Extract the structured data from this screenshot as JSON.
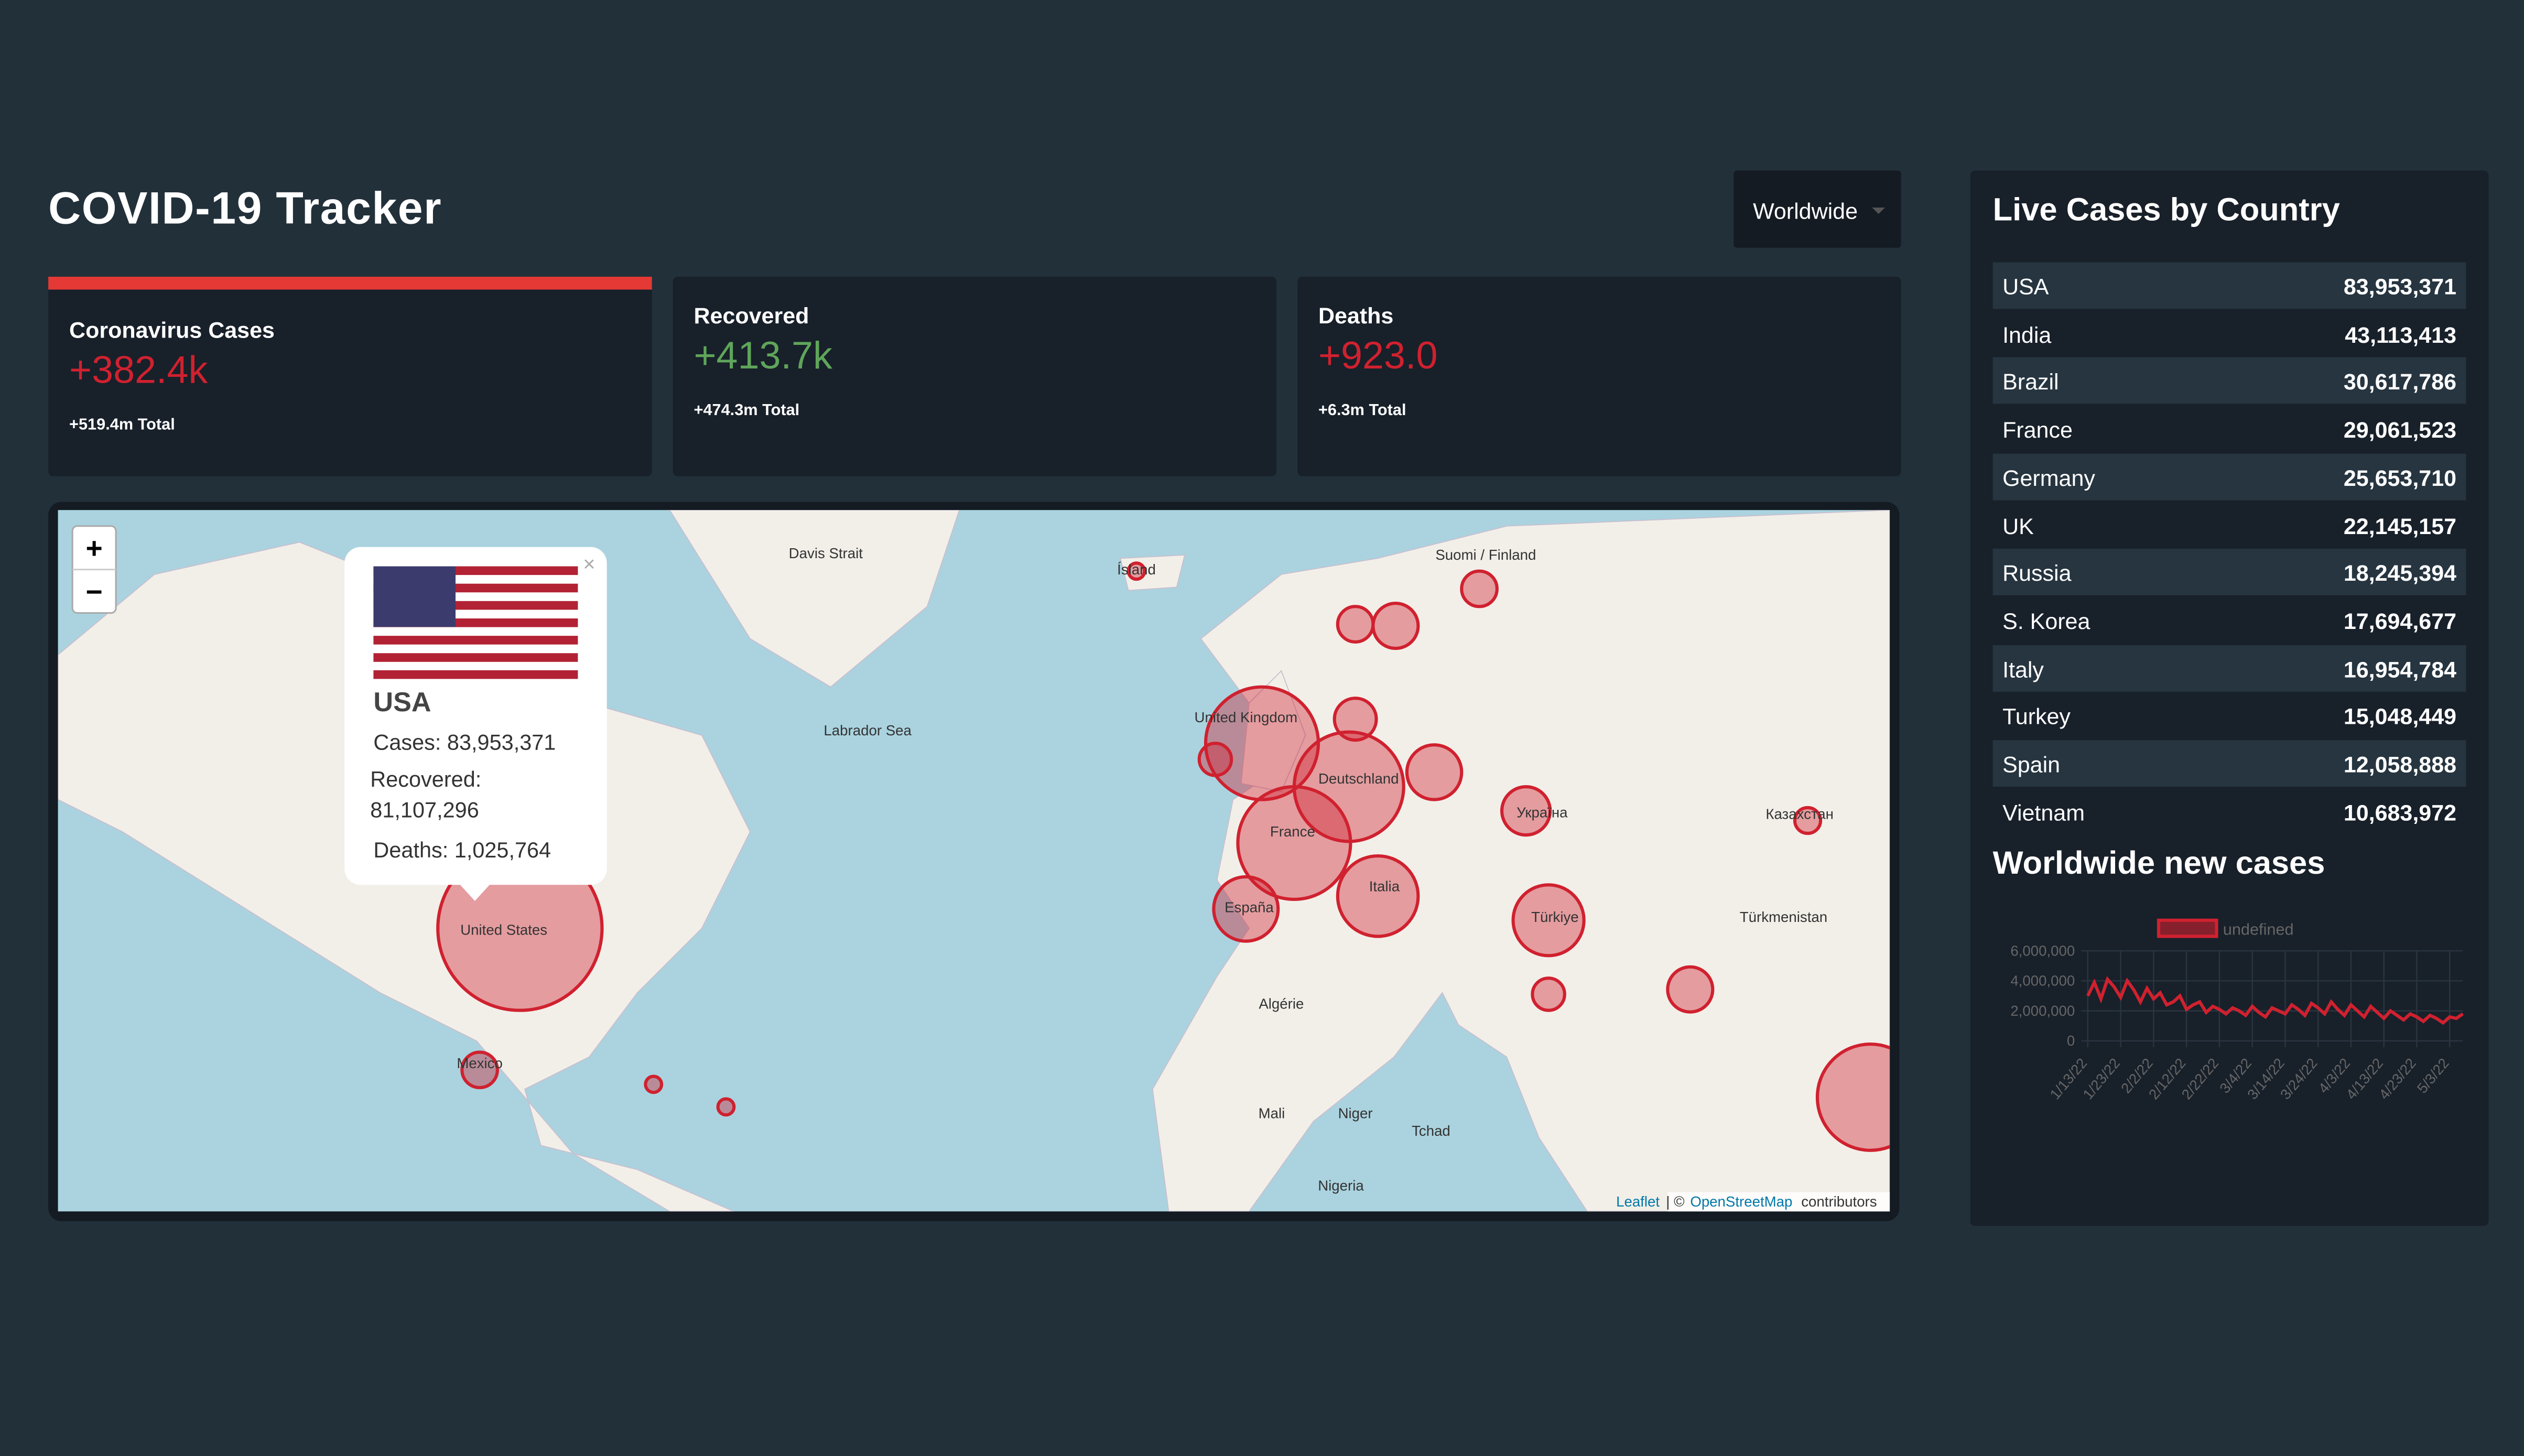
{
  "header": {
    "title": "COVID-19 Tracker",
    "dropdown": "Worldwide"
  },
  "stats": [
    {
      "title": "Coronavirus Cases",
      "value": "+382.4k",
      "total": "+519.4m Total"
    },
    {
      "title": "Recovered",
      "value": "+413.7k",
      "total": "+474.3m Total"
    },
    {
      "title": "Deaths",
      "value": "+923.0",
      "total": "+6.3m Total"
    }
  ],
  "map": {
    "zoom_in": "+",
    "zoom_out": "−",
    "labels": [
      "Davis Strait",
      "Ísland",
      "Labrador Sea",
      "United Kingdom",
      "Deutschland",
      "France",
      "España",
      "Italia",
      "Türkiye",
      "United States",
      "Mexico",
      "Mali",
      "Niger",
      "Nigeria",
      "Tchad",
      "Algérie",
      "Suomi / Finland",
      "Україна",
      "Казахстан",
      "Türkmenistan"
    ],
    "attribution": {
      "leaflet": "Leaflet",
      "sep": "| ©",
      "osm": "OpenStreetMap",
      "rest": "contributors"
    },
    "popup": {
      "close": "×",
      "country": "USA",
      "cases": "Cases: 83,953,371",
      "recovered": "Recovered: 81,107,296",
      "deaths": "Deaths: 1,025,764"
    }
  },
  "table": {
    "title": "Live Cases by Country",
    "rows": [
      [
        "USA",
        "83,953,371"
      ],
      [
        "India",
        "43,113,413"
      ],
      [
        "Brazil",
        "30,617,786"
      ],
      [
        "France",
        "29,061,523"
      ],
      [
        "Germany",
        "25,653,710"
      ],
      [
        "UK",
        "22,145,157"
      ],
      [
        "Russia",
        "18,245,394"
      ],
      [
        "S. Korea",
        "17,694,677"
      ],
      [
        "Italy",
        "16,954,784"
      ],
      [
        "Turkey",
        "15,048,449"
      ],
      [
        "Spain",
        "12,058,888"
      ],
      [
        "Vietnam",
        "10,683,972"
      ]
    ]
  },
  "chart_data": {
    "type": "line",
    "title": "Worldwide new cases",
    "categories": [
      "1/13/22",
      null,
      null,
      null,
      null,
      "1/23/22",
      null,
      null,
      null,
      null,
      "2/2/22",
      null,
      null,
      null,
      null,
      "2/12/22",
      null,
      null,
      null,
      null,
      "2/22/22",
      null,
      null,
      null,
      null,
      "3/4/22",
      null,
      null,
      null,
      null,
      "3/14/22",
      null,
      null,
      null,
      null,
      "3/24/22",
      null,
      null,
      null,
      null,
      "4/3/22",
      null,
      null,
      null,
      null,
      "4/13/22",
      null,
      null,
      null,
      null,
      "4/23/22",
      null,
      null,
      null,
      null,
      "5/3/22",
      null,
      null
    ],
    "series": [
      {
        "name": "undefined",
        "color": "#d0212f",
        "values": [
          3000000,
          3900000,
          2800000,
          4100000,
          3600000,
          2900000,
          4000000,
          3400000,
          2600000,
          3500000,
          2800000,
          3200000,
          2400000,
          2600000,
          3000000,
          2100000,
          2400000,
          2600000,
          1900000,
          2300000,
          2100000,
          1800000,
          2200000,
          2000000,
          1700000,
          2300000,
          1900000,
          1600000,
          2200000,
          2000000,
          1800000,
          2400000,
          2100000,
          1700000,
          2500000,
          2200000,
          1800000,
          2600000,
          2100000,
          1700000,
          2400000,
          2000000,
          1600000,
          2300000,
          1900000,
          1500000,
          2000000,
          1700000,
          1400000,
          1800000,
          1600000,
          1300000,
          1700000,
          1500000,
          1200000,
          1600000,
          1500000,
          1800000
        ]
      }
    ],
    "ylim": [
      0,
      6000000
    ],
    "yticks": [
      0,
      {
        "value": 2000000,
        "label": "2,000,000"
      },
      {
        "value": 4000000,
        "label": "4,000,000"
      },
      {
        "value": 6000000,
        "label": "6,000,000"
      }
    ],
    "grid": true
  }
}
